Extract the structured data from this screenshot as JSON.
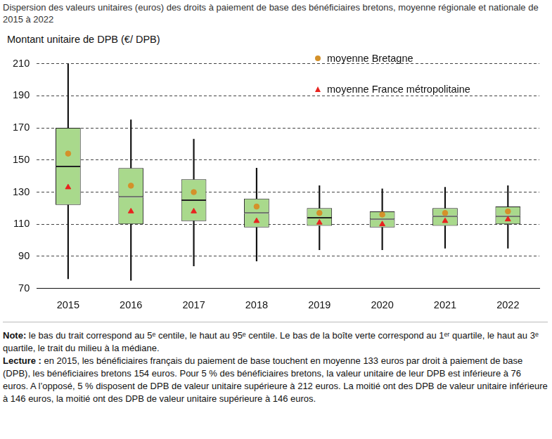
{
  "chart_data": {
    "type": "boxplot",
    "title": "Dispersion des valeurs unitaires (euros) des droits à paiement de base des bénéficiaires bretons, moyenne régionale et nationale de 2015 à 2022",
    "y_label": "Montant unitaire de DPB (€/ DPB)",
    "categories": [
      "2015",
      "2016",
      "2017",
      "2018",
      "2019",
      "2020",
      "2021",
      "2022"
    ],
    "boxes": {
      "color": "#a9d98c",
      "p5": [
        76,
        75,
        84,
        87,
        94,
        94,
        95,
        95
      ],
      "q1": [
        122,
        110,
        112,
        108,
        109,
        108,
        109,
        110
      ],
      "median": [
        146,
        127,
        125,
        117,
        114,
        113,
        115,
        115
      ],
      "q3": [
        170,
        145,
        138,
        126,
        120,
        118,
        120,
        121
      ],
      "p95": [
        212,
        175,
        163,
        145,
        134,
        132,
        133,
        134
      ]
    },
    "series": [
      {
        "name": "moyenne Bretagne",
        "color": "#d4912a",
        "marker": "circle",
        "values": [
          154,
          134,
          130,
          121,
          117,
          116,
          117,
          118
        ]
      },
      {
        "name": "moyenne France métropolitaine",
        "color": "#e8231f",
        "marker": "triangle",
        "values": [
          133,
          118,
          118,
          112,
          111,
          110,
          112,
          113
        ]
      }
    ],
    "ylim": [
      70,
      210
    ],
    "yticks": [
      70,
      90,
      110,
      130,
      150,
      170,
      190,
      210
    ],
    "grid": true,
    "legend": "upper right",
    "notes": [
      {
        "label": "Note:",
        "text": "le bas du trait correspond au 5ᵉ centile, le haut au 95ᵉ centile. Le bas de la boîte verte correspond au 1ᵉʳ quartile, le haut au 3ᵉ quartile, le trait du milieu à la médiane."
      },
      {
        "label": "Lecture :",
        "text": "en 2015, les bénéficiaires français du paiement de base touchent en moyenne 133 euros par droit à paiement de base (DPB), les bénéficiaires bretons 154 euros. Pour 5 % des bénéficiaires bretons, la valeur unitaire de leur DPB est inférieure à 76 euros. A l’opposé, 5 % disposent de DPB de valeur unitaire supérieure à 212 euros. La moitié ont des DPB de valeur unitaire inférieure à 146 euros, la moitié ont des DPB de valeur unitaire supérieure à 146 euros."
      }
    ]
  }
}
